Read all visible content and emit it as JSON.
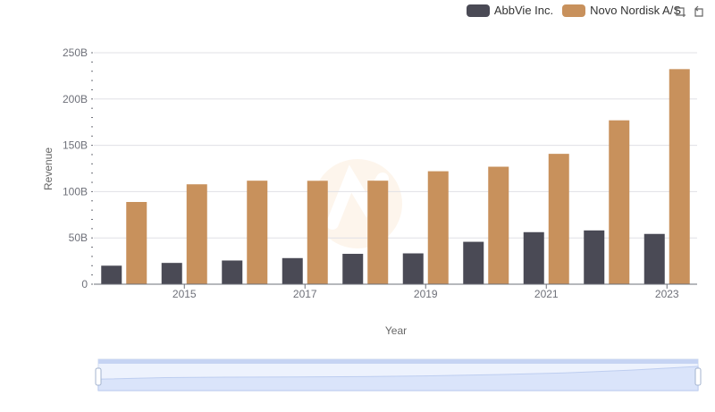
{
  "legend": {
    "items": [
      {
        "label": "AbbVie Inc.",
        "color": "#4a4a55"
      },
      {
        "label": "Novo Nordisk A/S",
        "color": "#c8915c"
      }
    ]
  },
  "toolbox": {
    "icons": [
      "zoom-icon",
      "restore-icon"
    ]
  },
  "chart_data": {
    "type": "bar",
    "x": [
      2014,
      2015,
      2016,
      2017,
      2018,
      2019,
      2020,
      2021,
      2022,
      2023
    ],
    "xticks": [
      "2015",
      "2017",
      "2019",
      "2021",
      "2023"
    ],
    "series": [
      {
        "name": "AbbVie Inc.",
        "color": "#4a4a55",
        "values": [
          20,
          23,
          25.6,
          28.2,
          32.8,
          33.3,
          45.8,
          56.2,
          58.1,
          54.3
        ]
      },
      {
        "name": "Novo Nordisk A/S",
        "color": "#c8915c",
        "values": [
          88.8,
          107.9,
          111.8,
          111.7,
          111.8,
          122,
          126.9,
          140.8,
          177,
          232.3
        ]
      }
    ],
    "yticks": [
      "0",
      "50B",
      "100B",
      "150B",
      "200B",
      "250B"
    ],
    "ylim": [
      0,
      250
    ],
    "xlabel": "Year",
    "ylabel": "Revenue",
    "grid": true,
    "legend_position": "top-right",
    "datazoom": {
      "start": 0,
      "end": 100,
      "color": "#d6e2fb"
    }
  }
}
